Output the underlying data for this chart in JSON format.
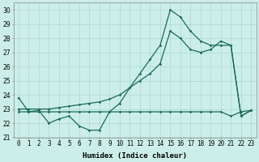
{
  "xlabel": "Humidex (Indice chaleur)",
  "x": [
    0,
    1,
    2,
    3,
    4,
    5,
    6,
    7,
    8,
    9,
    10,
    11,
    12,
    13,
    14,
    15,
    16,
    17,
    18,
    19,
    20,
    21,
    22,
    23
  ],
  "line1": [
    23.8,
    22.8,
    22.9,
    22.0,
    22.3,
    22.5,
    21.8,
    21.5,
    21.5,
    22.8,
    23.4,
    24.5,
    25.5,
    26.5,
    27.5,
    30.0,
    29.5,
    28.5,
    27.8,
    27.5,
    27.5,
    27.5,
    22.5,
    22.9
  ],
  "line2": [
    23.0,
    23.0,
    23.0,
    23.0,
    23.1,
    23.2,
    23.3,
    23.4,
    23.5,
    23.7,
    24.0,
    24.5,
    25.0,
    25.5,
    26.2,
    28.5,
    28.0,
    27.2,
    27.0,
    27.2,
    27.8,
    27.5,
    22.5,
    22.9
  ],
  "line3": [
    22.8,
    22.8,
    22.8,
    22.8,
    22.8,
    22.8,
    22.8,
    22.8,
    22.8,
    22.8,
    22.8,
    22.8,
    22.8,
    22.8,
    22.8,
    22.8,
    22.8,
    22.8,
    22.8,
    22.8,
    22.8,
    22.5,
    22.8,
    22.9
  ],
  "color": "#1a6b5a",
  "bg_color": "#cceee8",
  "grid_color": "#aad8d0",
  "ylim": [
    21,
    30.5
  ],
  "yticks": [
    21,
    22,
    23,
    24,
    25,
    26,
    27,
    28,
    29,
    30
  ],
  "tick_fontsize": 5.5,
  "label_fontsize": 6.5
}
